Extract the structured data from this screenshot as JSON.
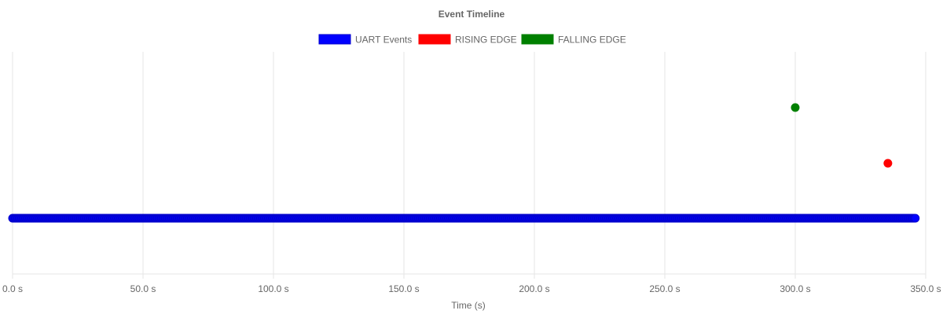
{
  "chart_data": {
    "type": "scatter",
    "title": "Event Timeline",
    "xlabel": "Time (s)",
    "ylabel": "",
    "xlim": [
      0,
      350
    ],
    "x_ticks": [
      0,
      50,
      100,
      150,
      200,
      250,
      300,
      350
    ],
    "x_tick_labels": [
      "0.0 s",
      "50.0 s",
      "100.0 s",
      "150.0 s",
      "200.0 s",
      "250.0 s",
      "300.0 s",
      "350.0 s"
    ],
    "grid": true,
    "legend_position": "top-center",
    "series": [
      {
        "name": "UART Events",
        "color": "#0000ff",
        "border_color": "#0000cc",
        "level": 1,
        "x_range": [
          0,
          346
        ],
        "x_step": 0.5
      },
      {
        "name": "RISING EDGE",
        "color": "#ff0000",
        "level": 2,
        "points": [
          335.5
        ]
      },
      {
        "name": "FALLING EDGE",
        "color": "#008000",
        "level": 3,
        "points": [
          300
        ]
      }
    ]
  }
}
